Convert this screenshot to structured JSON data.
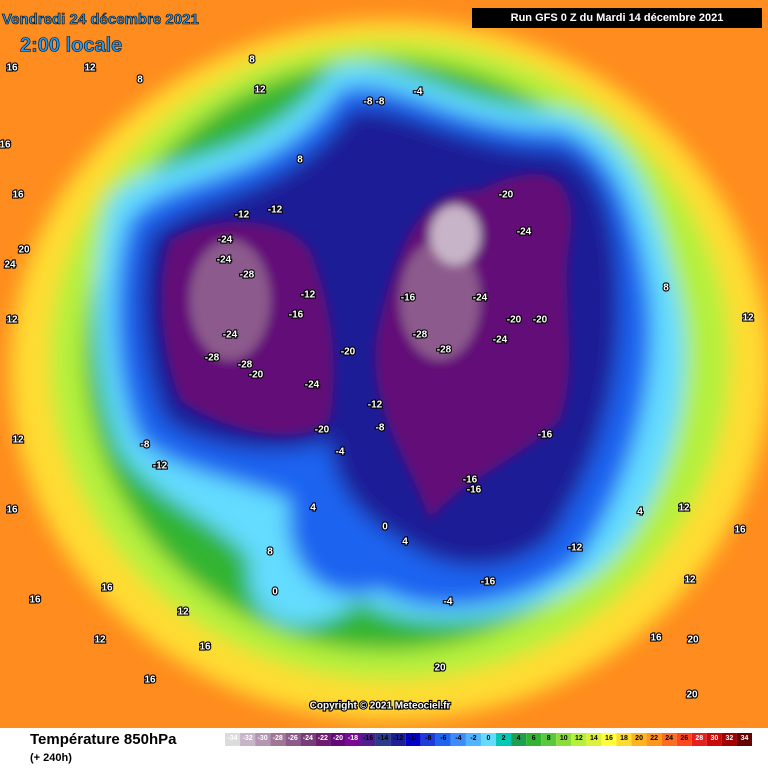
{
  "header": {
    "date": "Vendredi 24 décembre 2021",
    "time": "2:00 locale",
    "run": "Run GFS 0 Z du Mardi 14 décembre 2021"
  },
  "copyright": "Copyright © 2021 Meteociel.fr",
  "footer": {
    "title": "Température 850hPa",
    "subtitle": "(+ 240h)"
  },
  "colorbar": {
    "ticks": [
      -34,
      -32,
      -30,
      -28,
      -26,
      -24,
      -22,
      -20,
      -18,
      -16,
      -14,
      -12,
      -10,
      -8,
      -6,
      -4,
      -2,
      0,
      2,
      4,
      6,
      8,
      10,
      12,
      14,
      16,
      18,
      20,
      22,
      24,
      26,
      28,
      30,
      32,
      34
    ],
    "colors": [
      "#dcdcdc",
      "#c8b4c8",
      "#b496b4",
      "#a07896",
      "#8c5a8c",
      "#783c78",
      "#6e1e6e",
      "#640a78",
      "#780a96",
      "#501e8c",
      "#283c8c",
      "#1e1e96",
      "#0000c8",
      "#1e3cdc",
      "#1e64f0",
      "#3c8cff",
      "#50b4ff",
      "#64dcff",
      "#00c8b4",
      "#1ea050",
      "#32b432",
      "#5ac83c",
      "#8cdc3c",
      "#b4f03c",
      "#dcf03c",
      "#ffff3c",
      "#ffdc32",
      "#ffb41e",
      "#ff961e",
      "#ff6e1e",
      "#ff461e",
      "#e61e1e",
      "#c80a0a",
      "#a00000",
      "#640000"
    ]
  },
  "map_labels": [
    "16",
    "12",
    "16",
    "16",
    "8",
    "8",
    "8",
    "12",
    "24",
    "20",
    "12",
    "12",
    "16",
    "16",
    "-8",
    "-8",
    "-4",
    "-12",
    "-12",
    "-24",
    "-28",
    "-28",
    "-24",
    "-24",
    "-28",
    "-20",
    "-12",
    "-16",
    "-20",
    "-24",
    "-20",
    "-12",
    "-8",
    "-4",
    "-12",
    "-8",
    "-16",
    "-28",
    "-28",
    "-24",
    "-24",
    "-20",
    "-16",
    "-16",
    "-16",
    "-20",
    "-24",
    "-20",
    "-16",
    "-12",
    "-4",
    "0",
    "4",
    "4",
    "8",
    "12",
    "16",
    "12",
    "16",
    "16",
    "20",
    "20",
    "16",
    "12",
    "12",
    "16",
    "20",
    "12",
    "8",
    "4",
    "0"
  ]
}
